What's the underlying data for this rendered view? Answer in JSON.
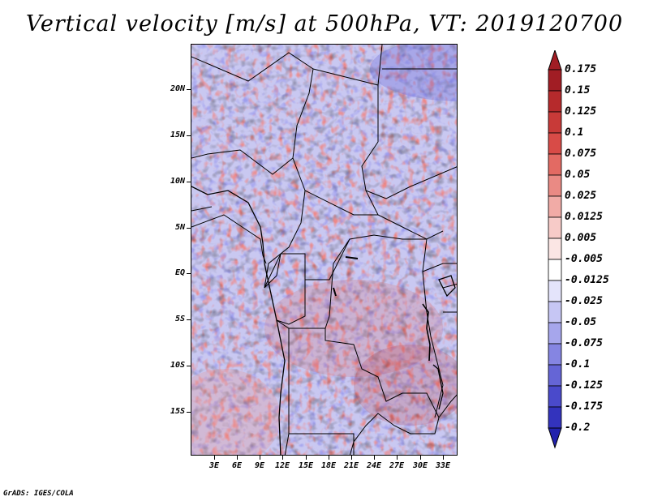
{
  "title": "Vertical velocity [m/s] at 500hPa, VT: 2019120700",
  "footer": "GrADS: IGES/COLA",
  "map": {
    "variable": "Vertical velocity",
    "units": "m/s",
    "level": "500hPa",
    "valid_time": "2019120700",
    "lon_range": [
      0,
      35
    ],
    "lat_range": [
      -20,
      24.5
    ],
    "lat_ticks": [
      {
        "value": 20,
        "label": "20N"
      },
      {
        "value": 15,
        "label": "15N"
      },
      {
        "value": 10,
        "label": "10N"
      },
      {
        "value": 5,
        "label": "5N"
      },
      {
        "value": 0,
        "label": "EQ"
      },
      {
        "value": -5,
        "label": "5S"
      },
      {
        "value": -10,
        "label": "10S"
      },
      {
        "value": -15,
        "label": "15S"
      }
    ],
    "lon_ticks": [
      {
        "value": 3,
        "label": "3E"
      },
      {
        "value": 6,
        "label": "6E"
      },
      {
        "value": 9,
        "label": "9E"
      },
      {
        "value": 12,
        "label": "12E"
      },
      {
        "value": 15,
        "label": "15E"
      },
      {
        "value": 18,
        "label": "18E"
      },
      {
        "value": 21,
        "label": "21E"
      },
      {
        "value": 24,
        "label": "24E"
      },
      {
        "value": 27,
        "label": "27E"
      },
      {
        "value": 30,
        "label": "30E"
      },
      {
        "value": 33,
        "label": "33E"
      }
    ]
  },
  "colorbar": {
    "levels": [
      {
        "label": "0.175",
        "color": "#a11d24"
      },
      {
        "label": "0.15",
        "color": "#b62a2c"
      },
      {
        "label": "0.125",
        "color": "#c83a38"
      },
      {
        "label": "0.1",
        "color": "#d84b47"
      },
      {
        "label": "0.075",
        "color": "#e36a63"
      },
      {
        "label": "0.05",
        "color": "#ea8a84"
      },
      {
        "label": "0.025",
        "color": "#f1aba6"
      },
      {
        "label": "0.0125",
        "color": "#f7cbc8"
      },
      {
        "label": "0.005",
        "color": "#fbe6e4"
      },
      {
        "label": "-0.005",
        "color": "#ffffff"
      },
      {
        "label": "-0.0125",
        "color": "#e4e4fb"
      },
      {
        "label": "-0.025",
        "color": "#c6c6f4"
      },
      {
        "label": "-0.05",
        "color": "#a6a6ec"
      },
      {
        "label": "-0.075",
        "color": "#8585e2"
      },
      {
        "label": "-0.1",
        "color": "#6565d6"
      },
      {
        "label": "-0.125",
        "color": "#4a4acb"
      },
      {
        "label": "-0.175",
        "color": "#3333bd"
      },
      {
        "label": "-0.2",
        "color": "#2222ad"
      }
    ],
    "top_extend_color": "#a11d24",
    "bottom_extend_color": "#2222ad"
  }
}
